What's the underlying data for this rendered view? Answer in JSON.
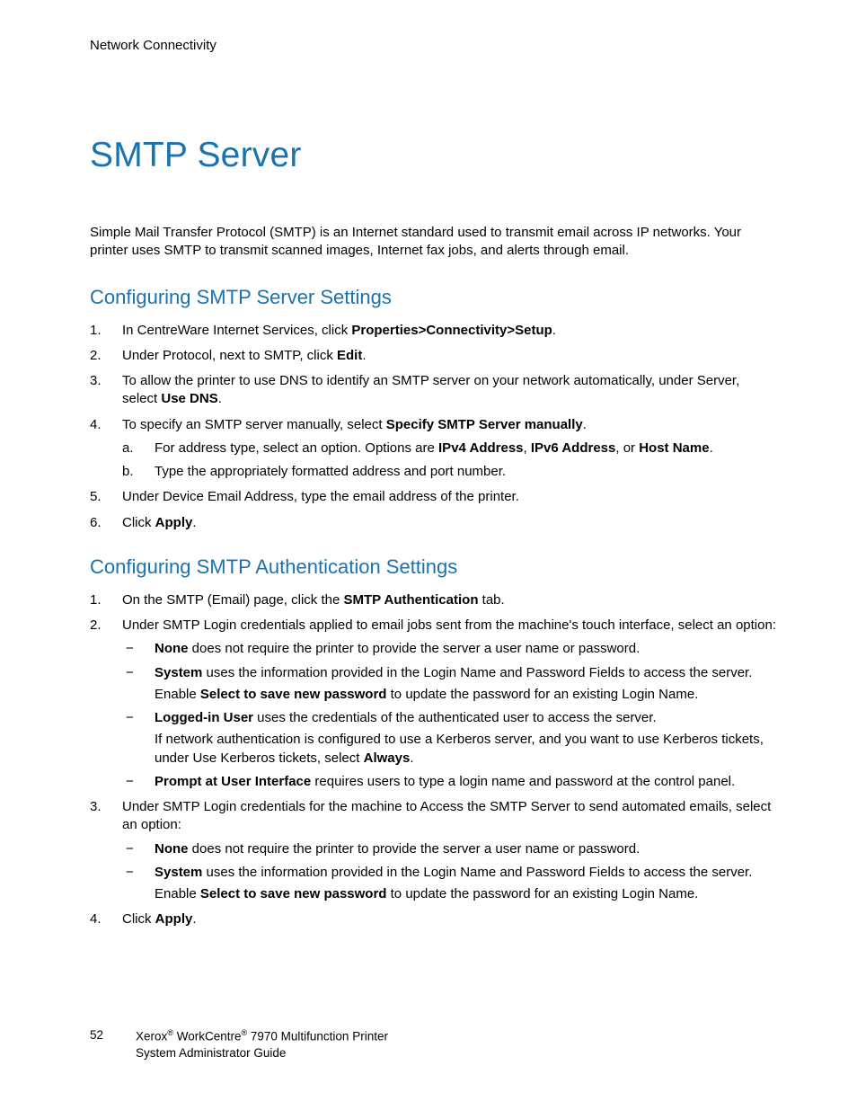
{
  "colors": {
    "heading": "#1a73b0",
    "body": "#000000",
    "background": "#ffffff"
  },
  "typography": {
    "body_fontsize": 15,
    "h1_fontsize": 39,
    "h2_fontsize": 22,
    "footer_fontsize": 13.5
  },
  "running_head": "Network Connectivity",
  "title": "SMTP Server",
  "intro": "Simple Mail Transfer Protocol (SMTP) is an Internet standard used to transmit email across IP networks. Your printer uses SMTP to transmit scanned images, Internet fax jobs, and alerts through email.",
  "section1": {
    "heading": "Configuring SMTP Server Settings",
    "items": {
      "i1_a": "In CentreWare Internet Services, click ",
      "i1_b": "Properties>Connectivity>Setup",
      "i1_c": ".",
      "i2_a": "Under Protocol, next to SMTP, click ",
      "i2_b": "Edit",
      "i2_c": ".",
      "i3_a": "To allow the printer to use DNS to identify an SMTP server on your network automatically, under Server, select ",
      "i3_b": "Use DNS",
      "i3_c": ".",
      "i4_a": "To specify an SMTP server manually, select ",
      "i4_b": "Specify SMTP Server manually",
      "i4_c": ".",
      "i4_sub_a1": "For address type, select an option. Options are ",
      "i4_sub_a2": "IPv4 Address",
      "i4_sub_a3": ", ",
      "i4_sub_a4": "IPv6 Address",
      "i4_sub_a5": ", or ",
      "i4_sub_a6": "Host Name",
      "i4_sub_a7": ".",
      "i4_sub_b": "Type the appropriately formatted address and port number.",
      "i5": "Under Device Email Address, type the email address of the printer.",
      "i6_a": "Click ",
      "i6_b": "Apply",
      "i6_c": "."
    }
  },
  "section2": {
    "heading": "Configuring SMTP Authentication Settings",
    "items": {
      "i1_a": "On the SMTP (Email) page, click the ",
      "i1_b": "SMTP Authentication",
      "i1_c": " tab.",
      "i2": "Under SMTP Login credentials applied to email jobs sent from the machine's touch interface, select an option:",
      "i2_d1_b": "None",
      "i2_d1_t": " does not require the printer to provide the server a user name or password.",
      "i2_d2_b": "System",
      "i2_d2_t": " uses the information provided in the Login Name and Password Fields to access the server.",
      "i2_d2_s1": "Enable ",
      "i2_d2_s2": "Select to save new password",
      "i2_d2_s3": " to update the password for an existing Login Name.",
      "i2_d3_b": "Logged-in User",
      "i2_d3_t": " uses the credentials of the authenticated user to access the server.",
      "i2_d3_s1": "If network authentication is configured to use a Kerberos server, and you want to use Kerberos tickets, under Use Kerberos tickets, select ",
      "i2_d3_s2": "Always",
      "i2_d3_s3": ".",
      "i2_d4_b": "Prompt at User Interface",
      "i2_d4_t": " requires users to type a login name and password at the control panel.",
      "i3": "Under SMTP Login credentials for the machine to Access the SMTP Server to send automated emails, select an option:",
      "i3_d1_b": "None",
      "i3_d1_t": " does not require the printer to provide the server a user name or password.",
      "i3_d2_b": "System",
      "i3_d2_t": " uses the information provided in the Login Name and Password Fields to access the server.",
      "i3_d2_s1": "Enable ",
      "i3_d2_s2": "Select to save new password",
      "i3_d2_s3": " to update the password for an existing Login Name.",
      "i4_a": "Click ",
      "i4_b": "Apply",
      "i4_c": "."
    }
  },
  "footer": {
    "page": "52",
    "brand": "Xerox",
    "product": " WorkCentre",
    "model": " 7970 Multifunction Printer",
    "line2": "System Administrator Guide",
    "reg": "®"
  }
}
